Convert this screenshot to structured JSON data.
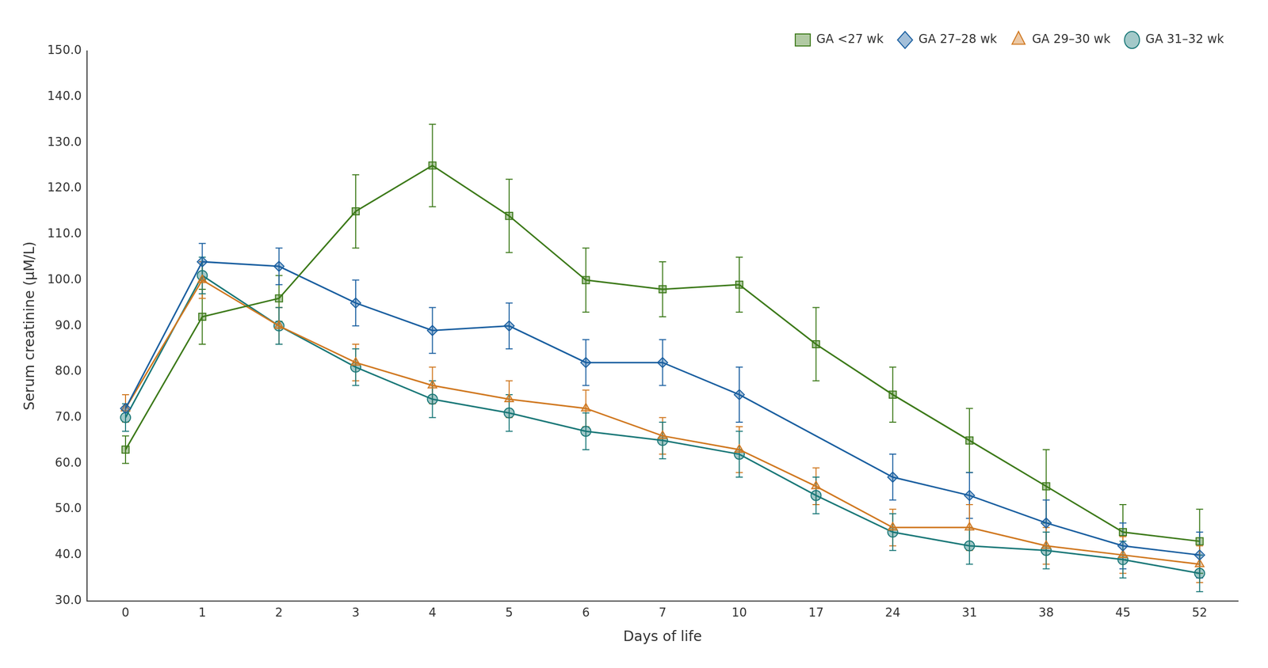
{
  "chart_data": {
    "type": "line",
    "xlabel": "Days of life",
    "ylabel": "Serum creatinine (μM/L)",
    "categories": [
      "0",
      "1",
      "2",
      "3",
      "4",
      "5",
      "6",
      "7",
      "10",
      "17",
      "24",
      "31",
      "38",
      "45",
      "52"
    ],
    "series": [
      {
        "name": "GA <27 wk",
        "color": "#3d7a1a",
        "marker": "square",
        "values": [
          63,
          92,
          96,
          115,
          125,
          114,
          100,
          98,
          99,
          86,
          75,
          65,
          55,
          45,
          43
        ],
        "errors": [
          3,
          6,
          5,
          8,
          9,
          8,
          7,
          6,
          6,
          8,
          6,
          7,
          8,
          6,
          7
        ]
      },
      {
        "name": "GA 27–28 wk",
        "color": "#1a5fa0",
        "marker": "diamond",
        "values": [
          72,
          104,
          103,
          95,
          89,
          90,
          82,
          82,
          75,
          null,
          57,
          53,
          47,
          42,
          40
        ],
        "errors": [
          3,
          4,
          4,
          5,
          5,
          5,
          5,
          5,
          6,
          null,
          5,
          5,
          5,
          5,
          5
        ]
      },
      {
        "name": "GA 29–30 wk",
        "color": "#d07820",
        "marker": "triangle",
        "values": [
          72,
          100,
          90,
          82,
          77,
          74,
          72,
          66,
          63,
          55,
          46,
          46,
          42,
          40,
          38
        ],
        "errors": [
          3,
          4,
          4,
          4,
          4,
          4,
          4,
          4,
          5,
          4,
          4,
          5,
          4,
          4,
          4
        ]
      },
      {
        "name": "GA 31–32 wk",
        "color": "#1a7878",
        "marker": "circle",
        "values": [
          70,
          101,
          90,
          81,
          74,
          71,
          67,
          65,
          62,
          53,
          45,
          42,
          41,
          39,
          36
        ],
        "errors": [
          3,
          4,
          4,
          4,
          4,
          4,
          4,
          4,
          5,
          4,
          4,
          4,
          4,
          4,
          4
        ]
      }
    ],
    "ylim": [
      30,
      150
    ],
    "yticks": [
      {
        "value": 30,
        "label": "30.0"
      },
      {
        "value": 40,
        "label": "40.0"
      },
      {
        "value": 50,
        "label": "50.0"
      },
      {
        "value": 60,
        "label": "60.0"
      },
      {
        "value": 70,
        "label": "70.0"
      },
      {
        "value": 80,
        "label": "80.0"
      },
      {
        "value": 90,
        "label": "90.0"
      },
      {
        "value": 100,
        "label": "100.0"
      },
      {
        "value": 110,
        "label": "110.0"
      },
      {
        "value": 120,
        "label": "120.0"
      },
      {
        "value": 130,
        "label": "130.0"
      },
      {
        "value": 140,
        "label": "140.0"
      },
      {
        "value": 150,
        "label": "150.0"
      }
    ],
    "grid": false,
    "legend": "upper right"
  }
}
